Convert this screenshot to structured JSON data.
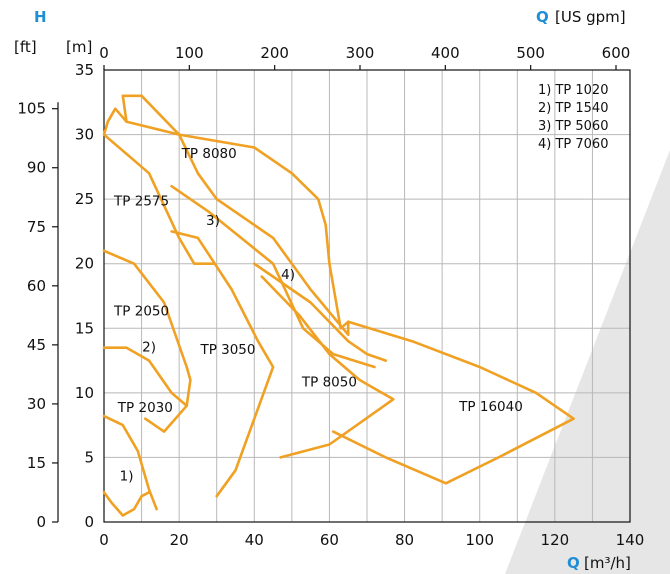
{
  "chart_data": {
    "type": "line",
    "title": "",
    "accent_color": "#f0a022",
    "label_color": "#1f8ed6",
    "y_axis": {
      "symbol": "H",
      "unit_m": "[m]",
      "unit_ft": "[ft]",
      "range_m": [
        0,
        35
      ],
      "ticks_m": [
        "0",
        "5",
        "10",
        "15",
        "20",
        "25",
        "30",
        "35"
      ],
      "ticks_ft": [
        "0",
        "15",
        "30",
        "45",
        "60",
        "75",
        "90",
        "105"
      ]
    },
    "x_axis": {
      "symbol": "Q",
      "unit_m3h": "[m³/h]",
      "unit_usgpm": "[US gpm]",
      "range_m3h": [
        0,
        140
      ],
      "ticks_m3h": [
        "0",
        "20",
        "40",
        "60",
        "80",
        "100",
        "120",
        "140"
      ],
      "ticks_usgpm": [
        "0",
        "100",
        "200",
        "300",
        "400",
        "500",
        "600"
      ]
    },
    "grid": true,
    "legend": {
      "placement": "top-right",
      "items": [
        "1) TP 1020",
        "2) TP 1540",
        "3) TP 5060",
        "4) TP 7060"
      ]
    },
    "regions": [
      {
        "name": "TP 8080",
        "label": "TP 8080",
        "points": [
          [
            5,
            33
          ],
          [
            6,
            31
          ],
          [
            20,
            30
          ],
          [
            40,
            29
          ],
          [
            50,
            27
          ],
          [
            57,
            25
          ],
          [
            59,
            23
          ],
          [
            60,
            20
          ],
          [
            63,
            15
          ],
          [
            65,
            15.5
          ],
          [
            65,
            14.5
          ],
          [
            55,
            18
          ],
          [
            45,
            22
          ],
          [
            30,
            25
          ],
          [
            25,
            27
          ],
          [
            20,
            30
          ],
          [
            10,
            33
          ],
          [
            5,
            33
          ]
        ],
        "label_pos": [
          28,
          28.2
        ]
      },
      {
        "name": "TP 2575",
        "label": "TP 2575",
        "points": [
          [
            6,
            31
          ],
          [
            3,
            32
          ],
          [
            1,
            31
          ],
          [
            0,
            30
          ],
          [
            12,
            27
          ],
          [
            20,
            22
          ],
          [
            24,
            20
          ],
          [
            29,
            20
          ]
        ],
        "label_pos": [
          10,
          24.5
        ]
      },
      {
        "name": "TP 5060",
        "label": "3)",
        "points": [
          [
            18,
            26
          ],
          [
            28,
            24
          ],
          [
            45,
            20
          ],
          [
            53,
            15
          ],
          [
            61,
            13
          ],
          [
            72,
            12
          ]
        ],
        "label_pos": [
          29,
          23
        ]
      },
      {
        "name": "TP 7060",
        "label": "4)",
        "points": [
          [
            40,
            20
          ],
          [
            55,
            17
          ],
          [
            65,
            14
          ],
          [
            70,
            13
          ],
          [
            75,
            12.5
          ]
        ],
        "label_pos": [
          49,
          18.8
        ]
      },
      {
        "name": "TP 2050",
        "label": "TP 2050",
        "points": [
          [
            0,
            21
          ],
          [
            8,
            20
          ],
          [
            16,
            17
          ],
          [
            22,
            12
          ],
          [
            23,
            11
          ],
          [
            22,
            9
          ],
          [
            16,
            7
          ],
          [
            11,
            8
          ]
        ],
        "label_pos": [
          10,
          16
        ]
      },
      {
        "name": "TP 1540",
        "label": "2)",
        "points": [
          [
            0,
            13.5
          ],
          [
            6,
            13.5
          ],
          [
            12,
            12.5
          ],
          [
            18,
            10
          ],
          [
            22,
            9
          ]
        ],
        "label_pos": [
          12,
          13.2
        ]
      },
      {
        "name": "TP 3050",
        "label": "TP 3050",
        "points": [
          [
            18,
            22.5
          ],
          [
            25,
            22
          ],
          [
            34,
            18
          ],
          [
            41,
            14
          ],
          [
            45,
            12
          ],
          [
            40,
            8
          ],
          [
            35,
            4
          ],
          [
            30,
            2
          ]
        ],
        "label_pos": [
          33,
          13
        ]
      },
      {
        "name": "TP 8050",
        "label": "TP 8050",
        "points": [
          [
            42,
            19
          ],
          [
            52,
            16
          ],
          [
            60,
            13
          ],
          [
            68,
            11
          ],
          [
            77,
            9.5
          ],
          [
            60,
            6
          ],
          [
            47,
            5
          ]
        ],
        "label_pos": [
          60,
          10.5
        ]
      },
      {
        "name": "TP 16040",
        "label": "TP 16040",
        "points": [
          [
            65,
            15.5
          ],
          [
            82,
            14
          ],
          [
            100,
            12
          ],
          [
            115,
            10
          ],
          [
            125,
            8
          ],
          [
            105,
            5
          ],
          [
            91,
            3
          ],
          [
            75,
            5
          ],
          [
            61,
            7
          ]
        ],
        "label_pos": [
          103,
          8.6
        ]
      },
      {
        "name": "TP 2030",
        "label": "TP 2030",
        "points": [
          [
            0,
            8.2
          ],
          [
            5,
            7.5
          ],
          [
            9,
            5.5
          ],
          [
            12,
            2.5
          ],
          [
            14,
            1
          ]
        ],
        "label_pos": [
          11,
          8.5
        ]
      },
      {
        "name": "TP 1020",
        "label": "1)",
        "points": [
          [
            0,
            2.3
          ],
          [
            2,
            1.5
          ],
          [
            5,
            0.5
          ],
          [
            8,
            1
          ],
          [
            10,
            2
          ],
          [
            12,
            2.3
          ]
        ],
        "label_pos": [
          6,
          3.2
        ]
      }
    ]
  }
}
